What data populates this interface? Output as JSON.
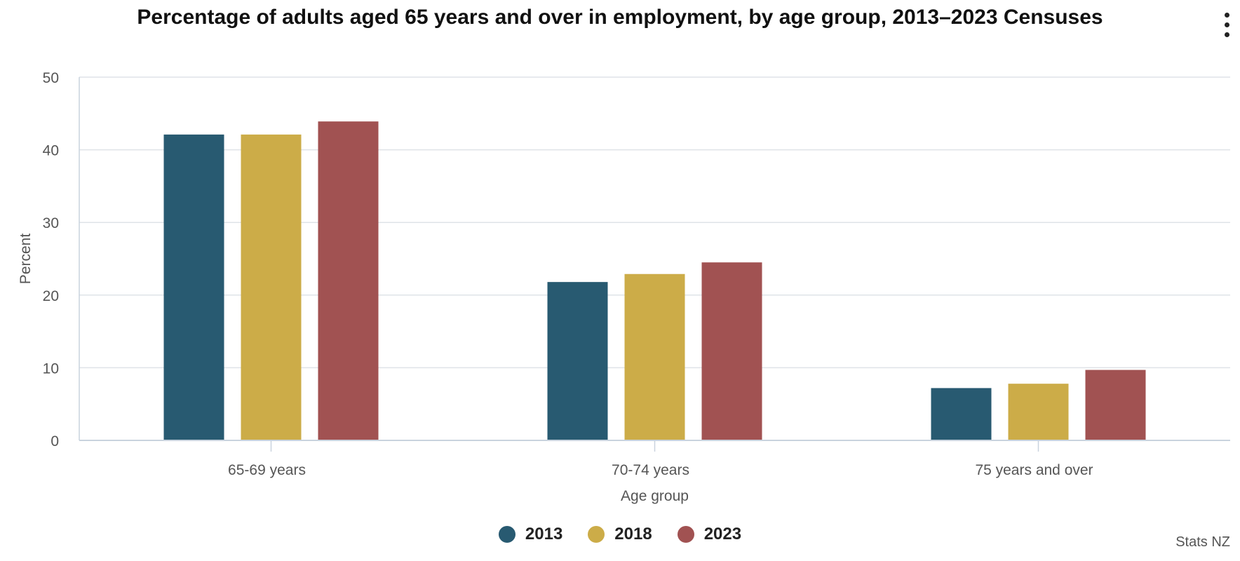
{
  "chart_data": {
    "type": "bar",
    "title": "Percentage of adults aged 65 years and over in employment, by age group, 2013–2023 Censuses",
    "xlabel": "Age group",
    "ylabel": "Percent",
    "categories": [
      "65-69 years",
      "70-74 years",
      "75 years and over"
    ],
    "series": [
      {
        "name": "2013",
        "color": "#285a71",
        "values": [
          42.1,
          21.8,
          7.2
        ]
      },
      {
        "name": "2018",
        "color": "#ccac48",
        "values": [
          42.1,
          22.9,
          7.8
        ]
      },
      {
        "name": "2023",
        "color": "#a15252",
        "values": [
          43.9,
          24.5,
          9.7
        ]
      }
    ],
    "ylim": [
      0,
      50
    ],
    "yticks": [
      0,
      10,
      20,
      30,
      40,
      50
    ],
    "grid": true,
    "legend_position": "bottom-center"
  },
  "credit": "Stats NZ",
  "menu_icon": "vertical-ellipsis-icon"
}
